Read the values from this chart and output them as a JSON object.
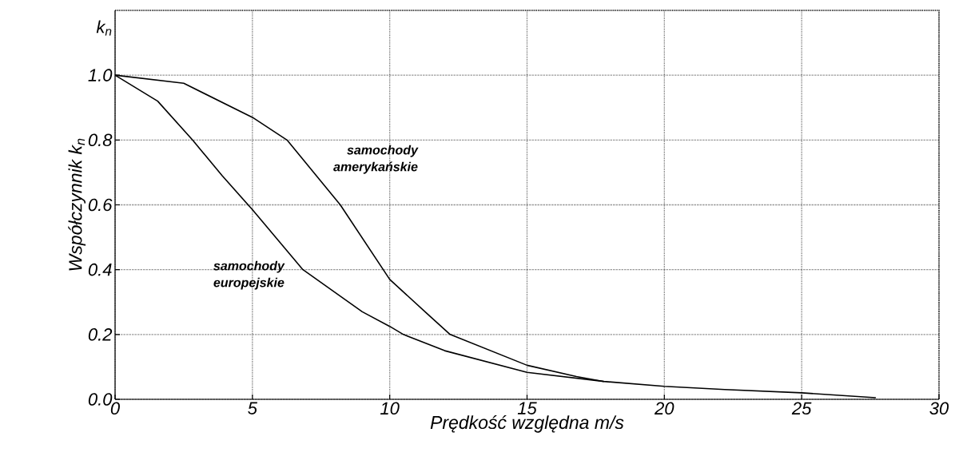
{
  "chart_data": {
    "type": "line",
    "xlabel": "Prędkość względna m/s",
    "ylabel": "Współczynnik k$_{n}$",
    "annotations": [
      "k$_{n}$"
    ],
    "x": [
      0,
      1.55,
      2.82,
      3.9,
      5,
      6.84,
      9.0,
      10.0,
      10.5,
      12,
      15,
      17.8,
      20,
      22.2,
      25,
      27.7
    ],
    "series": [
      {
        "name": "samochody europejskie",
        "color": "#000000",
        "values": [
          1.0,
          0.92,
          0.8,
          0.69,
          0.585,
          0.4,
          0.27,
          0.225,
          0.2,
          0.15,
          0.083,
          0.055,
          0.04,
          0.03,
          0.02,
          0.005
        ]
      },
      {
        "name": "samochody amerykańskie",
        "color": "#000000",
        "x": [
          0,
          2.5,
          5,
          6.26,
          8.2,
          10.0,
          11.35,
          12.2,
          15,
          16.8,
          17.8
        ],
        "values": [
          1.0,
          0.975,
          0.87,
          0.8,
          0.6,
          0.37,
          0.265,
          0.2,
          0.105,
          0.07,
          0.055
        ]
      }
    ],
    "xlim": [
      0,
      30
    ],
    "xticks": [
      0,
      5,
      10,
      15,
      20,
      25,
      30
    ],
    "ylim": [
      0,
      1.2
    ],
    "yticks": [
      {
        "value": 0,
        "label": "0.0"
      },
      {
        "value": 0.2,
        "label": "0.2"
      },
      {
        "value": 0.4,
        "label": "0.4"
      },
      {
        "value": 0.6,
        "label": "0.6"
      },
      {
        "value": 0.8,
        "label": "0.8"
      },
      {
        "value": 1.0,
        "label": "1.0"
      }
    ],
    "grid": true,
    "marker": "none",
    "line_style": "solid"
  }
}
